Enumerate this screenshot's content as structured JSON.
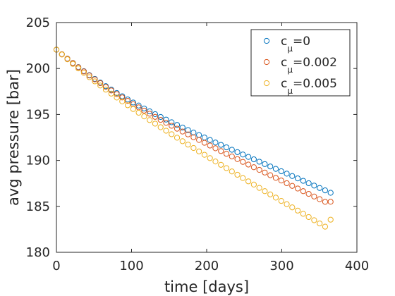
{
  "chart_data": {
    "type": "scatter",
    "title": "",
    "xlabel": "time [days]",
    "ylabel": "avg pressure [bar]",
    "xlim": [
      0,
      400
    ],
    "ylim": [
      180,
      205
    ],
    "xticks": [
      0,
      100,
      200,
      300,
      400
    ],
    "yticks": [
      180,
      185,
      190,
      195,
      200,
      205
    ],
    "grid": false,
    "legend_position": "top-right",
    "marker": "open-circle",
    "x": [
      0,
      7.3,
      14.6,
      21.9,
      29.2,
      36.5,
      43.8,
      51.1,
      58.4,
      65.7,
      73,
      80.3,
      87.6,
      94.9,
      102.2,
      109.5,
      116.8,
      124.1,
      131.4,
      138.7,
      146,
      153.3,
      160.6,
      167.9,
      175.2,
      182.5,
      189.8,
      197.1,
      204.4,
      211.7,
      219,
      226.3,
      233.6,
      240.9,
      248.2,
      255.5,
      262.8,
      270.1,
      277.4,
      284.7,
      292,
      299.3,
      306.6,
      313.9,
      321.2,
      328.5,
      335.8,
      343.1,
      350.4,
      357.7,
      365
    ],
    "series": [
      {
        "name": "c_μ=0",
        "legend_main": "c",
        "legend_sub": "μ",
        "legend_value": "=0",
        "color": "#0072BD",
        "values": [
          202.05,
          201.55,
          201.07,
          200.6,
          200.15,
          199.71,
          199.28,
          198.87,
          198.47,
          198.08,
          197.7,
          197.33,
          196.98,
          196.63,
          196.3,
          195.97,
          195.65,
          195.34,
          195.03,
          194.73,
          194.44,
          194.15,
          193.86,
          193.58,
          193.3,
          193.03,
          192.76,
          192.49,
          192.22,
          191.95,
          191.69,
          191.42,
          191.16,
          190.9,
          190.64,
          190.38,
          190.12,
          189.86,
          189.6,
          189.34,
          189.08,
          188.82,
          188.56,
          188.3,
          188.04,
          187.78,
          187.52,
          187.26,
          187.0,
          186.74,
          186.48
        ]
      },
      {
        "name": "c_μ=0.002",
        "legend_main": "c",
        "legend_sub": "μ",
        "legend_value": "=0.002",
        "color": "#D95319",
        "values": [
          202.05,
          201.55,
          201.06,
          200.59,
          200.13,
          199.68,
          199.24,
          198.82,
          198.41,
          198.0,
          197.61,
          197.22,
          196.85,
          196.48,
          196.12,
          195.77,
          195.42,
          195.08,
          194.74,
          194.41,
          194.09,
          193.77,
          193.45,
          193.14,
          192.83,
          192.52,
          192.22,
          191.92,
          191.62,
          191.32,
          191.02,
          190.72,
          190.43,
          190.14,
          189.84,
          189.55,
          189.26,
          188.97,
          188.68,
          188.39,
          188.1,
          187.81,
          187.52,
          187.23,
          186.94,
          186.65,
          186.36,
          186.07,
          185.78,
          185.49,
          185.5
        ]
      },
      {
        "name": "c_μ=0.005",
        "legend_main": "c",
        "legend_sub": "μ",
        "legend_value": "=0.005",
        "color": "#EDB120",
        "values": [
          202.05,
          201.52,
          201.0,
          200.5,
          200.01,
          199.53,
          199.06,
          198.6,
          198.15,
          197.7,
          197.27,
          196.84,
          196.42,
          196.0,
          195.59,
          195.19,
          194.79,
          194.39,
          194.0,
          193.61,
          193.23,
          192.85,
          192.47,
          192.09,
          191.72,
          191.35,
          190.98,
          190.61,
          190.25,
          189.88,
          189.52,
          189.16,
          188.8,
          188.44,
          188.08,
          187.72,
          187.37,
          187.01,
          186.65,
          186.3,
          185.95,
          185.59,
          185.24,
          184.89,
          184.54,
          184.19,
          183.84,
          183.49,
          183.14,
          182.79,
          183.55
        ]
      }
    ]
  }
}
